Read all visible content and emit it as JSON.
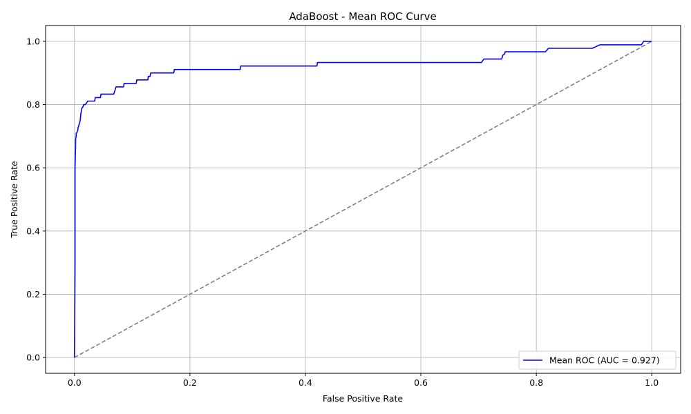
{
  "chart_data": {
    "type": "line",
    "title": "AdaBoost - Mean ROC Curve",
    "xlabel": "False Positive Rate",
    "ylabel": "True Positive Rate",
    "xlim": [
      -0.05,
      1.05
    ],
    "ylim": [
      -0.05,
      1.05
    ],
    "xticks": [
      "0.0",
      "0.2",
      "0.4",
      "0.6",
      "0.8",
      "1.0"
    ],
    "yticks": [
      "0.0",
      "0.2",
      "0.4",
      "0.6",
      "0.8",
      "1.0"
    ],
    "grid": true,
    "legend_position": "lower-right",
    "series": [
      {
        "name": "Mean ROC (AUC = 0.927)",
        "color": "#0000ff",
        "style": "solid",
        "x": [
          0.0,
          0.001,
          0.001,
          0.002,
          0.002,
          0.003,
          0.003,
          0.004,
          0.006,
          0.006,
          0.009,
          0.01,
          0.011,
          0.013,
          0.014,
          0.016,
          0.017,
          0.019,
          0.023,
          0.025,
          0.035,
          0.036,
          0.045,
          0.046,
          0.068,
          0.07,
          0.071,
          0.072,
          0.073,
          0.085,
          0.086,
          0.107,
          0.108,
          0.127,
          0.128,
          0.131,
          0.132,
          0.172,
          0.173,
          0.287,
          0.288,
          0.42,
          0.421,
          0.705,
          0.709,
          0.74,
          0.742,
          0.745,
          0.746,
          0.816,
          0.821,
          0.897,
          0.91,
          0.982,
          0.986,
          1.0
        ],
        "y": [
          0.0,
          0.3,
          0.6,
          0.67,
          0.69,
          0.7,
          0.71,
          0.71,
          0.72,
          0.725,
          0.743,
          0.75,
          0.77,
          0.79,
          0.79,
          0.8,
          0.8,
          0.8,
          0.811,
          0.811,
          0.811,
          0.822,
          0.822,
          0.833,
          0.833,
          0.844,
          0.85,
          0.856,
          0.856,
          0.856,
          0.867,
          0.867,
          0.878,
          0.878,
          0.889,
          0.889,
          0.9,
          0.9,
          0.911,
          0.911,
          0.922,
          0.922,
          0.933,
          0.933,
          0.944,
          0.944,
          0.956,
          0.96,
          0.967,
          0.967,
          0.978,
          0.978,
          0.989,
          0.989,
          1.0,
          1.0
        ]
      },
      {
        "name": "",
        "color": "#808080",
        "style": "dashed",
        "x": [
          0,
          1
        ],
        "y": [
          0,
          1
        ]
      }
    ]
  }
}
